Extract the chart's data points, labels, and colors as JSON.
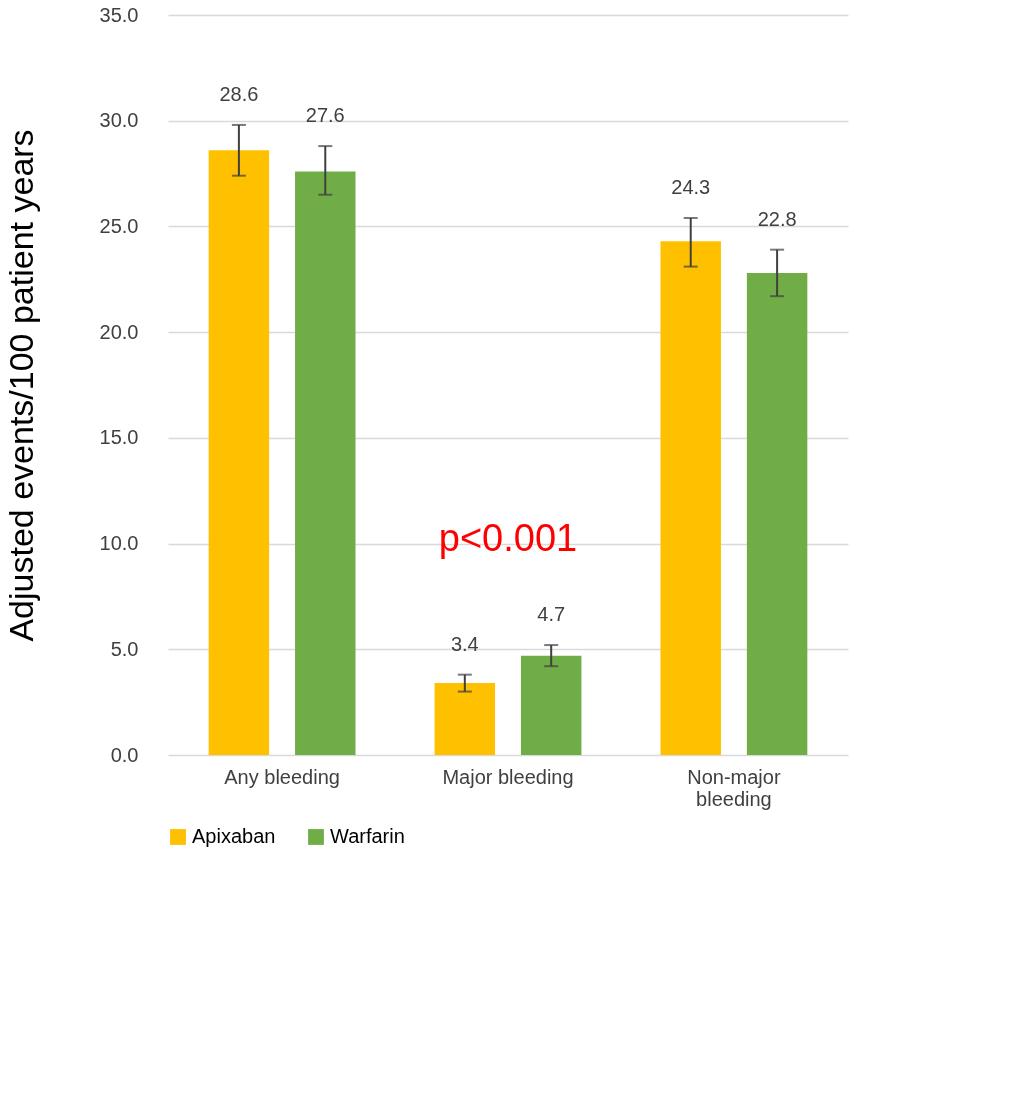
{
  "chart_data": {
    "type": "bar",
    "ylabel": "Adjusted events/100 patient years",
    "categories": [
      "Any bleeding",
      "Major bleeding",
      "Non-major bleeding"
    ],
    "series": [
      {
        "name": "Apixaban",
        "color": "#ffc000",
        "values": [
          28.6,
          3.4,
          24.3
        ],
        "errors": [
          [
            27.4,
            29.8
          ],
          [
            3.0,
            3.8
          ],
          [
            23.1,
            25.4
          ]
        ]
      },
      {
        "name": "Warfarin",
        "color": "#70ad47",
        "values": [
          27.6,
          4.7,
          22.8
        ],
        "errors": [
          [
            26.5,
            28.8
          ],
          [
            4.2,
            5.2
          ],
          [
            21.7,
            23.9
          ]
        ]
      }
    ],
    "ylim": [
      0,
      35
    ],
    "yticks": [
      {
        "value": 0,
        "label": "0.0"
      },
      {
        "value": 5,
        "label": "5.0"
      },
      {
        "value": 10,
        "label": "10.0"
      },
      {
        "value": 15,
        "label": "15.0"
      },
      {
        "value": 20,
        "label": "20.0"
      },
      {
        "value": 25,
        "label": "25.0"
      },
      {
        "value": 30,
        "label": "30.0"
      },
      {
        "value": 35,
        "label": "35.0"
      }
    ],
    "grid": "y",
    "legend": "bottom",
    "data_labels": true,
    "annotations": [
      "p<0.001"
    ]
  }
}
